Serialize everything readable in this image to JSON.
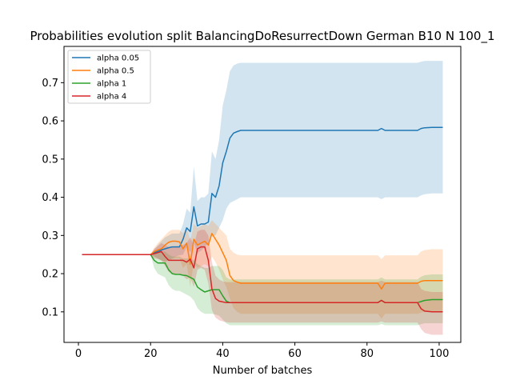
{
  "chart_data": {
    "type": "line",
    "title": "Probabilities evolution split BalancingDoResurrectDown German B10 N 100_1",
    "xlabel": "Number of batches",
    "ylabel": "",
    "xlim": [
      -4,
      106
    ],
    "ylim": [
      0.02,
      0.795
    ],
    "xticks": [
      0,
      20,
      40,
      60,
      80,
      100
    ],
    "yticks": [
      0.1,
      0.2,
      0.3,
      0.4,
      0.5,
      0.6,
      0.7
    ],
    "grid": false,
    "legend_position": "top-left",
    "band_opacity": 0.2,
    "series": [
      {
        "name": "alpha 0.05",
        "color": "#1f77b4",
        "x": [
          1,
          20,
          21,
          22,
          23,
          24,
          25,
          26,
          27,
          28,
          29,
          30,
          31,
          32,
          33,
          34,
          35,
          36,
          37,
          38,
          39,
          40,
          41,
          42,
          43,
          44,
          45,
          46,
          50,
          60,
          70,
          80,
          83,
          84,
          85,
          90,
          94,
          95,
          96,
          98,
          101
        ],
        "y": [
          0.25,
          0.25,
          0.255,
          0.258,
          0.262,
          0.265,
          0.268,
          0.27,
          0.27,
          0.27,
          0.29,
          0.32,
          0.31,
          0.375,
          0.325,
          0.33,
          0.33,
          0.335,
          0.41,
          0.4,
          0.43,
          0.49,
          0.52,
          0.555,
          0.568,
          0.572,
          0.575,
          0.575,
          0.575,
          0.575,
          0.575,
          0.575,
          0.575,
          0.58,
          0.575,
          0.575,
          0.575,
          0.58,
          0.582,
          0.583,
          0.583
        ],
        "lower": [
          0.25,
          0.25,
          0.245,
          0.24,
          0.235,
          0.232,
          0.235,
          0.24,
          0.245,
          0.248,
          0.25,
          0.27,
          0.255,
          0.28,
          0.255,
          0.26,
          0.27,
          0.28,
          0.3,
          0.3,
          0.32,
          0.34,
          0.37,
          0.385,
          0.39,
          0.395,
          0.4,
          0.4,
          0.4,
          0.4,
          0.4,
          0.4,
          0.4,
          0.395,
          0.4,
          0.4,
          0.4,
          0.405,
          0.408,
          0.41,
          0.41
        ],
        "upper": [
          0.25,
          0.25,
          0.262,
          0.275,
          0.285,
          0.295,
          0.3,
          0.305,
          0.305,
          0.305,
          0.33,
          0.37,
          0.36,
          0.48,
          0.39,
          0.4,
          0.4,
          0.41,
          0.52,
          0.5,
          0.55,
          0.64,
          0.68,
          0.73,
          0.745,
          0.75,
          0.752,
          0.752,
          0.752,
          0.752,
          0.752,
          0.752,
          0.752,
          0.752,
          0.752,
          0.752,
          0.752,
          0.755,
          0.757,
          0.757,
          0.757
        ]
      },
      {
        "name": "alpha 0.5",
        "color": "#ff7f0e",
        "x": [
          1,
          20,
          21,
          22,
          23,
          24,
          25,
          26,
          27,
          28,
          29,
          30,
          31,
          32,
          33,
          34,
          35,
          36,
          37,
          38,
          39,
          40,
          41,
          42,
          43,
          44,
          45,
          46,
          50,
          60,
          70,
          80,
          83,
          84,
          85,
          90,
          94,
          95,
          96,
          98,
          101
        ],
        "y": [
          0.25,
          0.25,
          0.258,
          0.262,
          0.265,
          0.275,
          0.282,
          0.285,
          0.285,
          0.283,
          0.265,
          0.28,
          0.225,
          0.29,
          0.275,
          0.28,
          0.285,
          0.275,
          0.305,
          0.29,
          0.275,
          0.255,
          0.235,
          0.195,
          0.182,
          0.178,
          0.175,
          0.175,
          0.175,
          0.175,
          0.175,
          0.175,
          0.175,
          0.16,
          0.175,
          0.175,
          0.175,
          0.18,
          0.182,
          0.182,
          0.182
        ],
        "lower": [
          0.25,
          0.25,
          0.245,
          0.24,
          0.235,
          0.23,
          0.235,
          0.238,
          0.24,
          0.24,
          0.215,
          0.225,
          0.165,
          0.23,
          0.215,
          0.22,
          0.225,
          0.22,
          0.245,
          0.23,
          0.21,
          0.185,
          0.165,
          0.135,
          0.11,
          0.1,
          0.095,
          0.095,
          0.095,
          0.095,
          0.095,
          0.095,
          0.095,
          0.082,
          0.095,
          0.095,
          0.095,
          0.098,
          0.1,
          0.1,
          0.1
        ],
        "upper": [
          0.25,
          0.25,
          0.268,
          0.28,
          0.29,
          0.3,
          0.31,
          0.315,
          0.315,
          0.315,
          0.305,
          0.32,
          0.285,
          0.33,
          0.32,
          0.325,
          0.33,
          0.325,
          0.34,
          0.33,
          0.32,
          0.31,
          0.3,
          0.265,
          0.255,
          0.25,
          0.248,
          0.248,
          0.248,
          0.248,
          0.248,
          0.248,
          0.248,
          0.238,
          0.248,
          0.248,
          0.248,
          0.258,
          0.262,
          0.264,
          0.264
        ]
      },
      {
        "name": "alpha 1",
        "color": "#2ca02c",
        "x": [
          1,
          20,
          21,
          22,
          23,
          24,
          25,
          26,
          27,
          28,
          29,
          30,
          31,
          32,
          33,
          34,
          35,
          36,
          37,
          38,
          39,
          40,
          41,
          42,
          43,
          44,
          45,
          46,
          50,
          60,
          70,
          80,
          83,
          84,
          85,
          90,
          94,
          95,
          96,
          98,
          101
        ],
        "y": [
          0.25,
          0.25,
          0.235,
          0.228,
          0.228,
          0.228,
          0.21,
          0.2,
          0.198,
          0.198,
          0.196,
          0.195,
          0.19,
          0.185,
          0.165,
          0.158,
          0.152,
          0.155,
          0.158,
          0.158,
          0.158,
          0.142,
          0.128,
          0.124,
          0.124,
          0.124,
          0.124,
          0.124,
          0.124,
          0.124,
          0.124,
          0.124,
          0.124,
          0.13,
          0.124,
          0.124,
          0.124,
          0.127,
          0.13,
          0.132,
          0.132
        ],
        "lower": [
          0.25,
          0.25,
          0.215,
          0.2,
          0.195,
          0.19,
          0.17,
          0.16,
          0.155,
          0.155,
          0.15,
          0.145,
          0.14,
          0.13,
          0.11,
          0.1,
          0.095,
          0.095,
          0.095,
          0.093,
          0.09,
          0.08,
          0.07,
          0.065,
          0.065,
          0.065,
          0.065,
          0.065,
          0.065,
          0.065,
          0.065,
          0.065,
          0.065,
          0.068,
          0.065,
          0.065,
          0.065,
          0.068,
          0.07,
          0.07,
          0.07
        ],
        "upper": [
          0.25,
          0.25,
          0.255,
          0.258,
          0.258,
          0.258,
          0.25,
          0.245,
          0.245,
          0.245,
          0.24,
          0.24,
          0.24,
          0.235,
          0.225,
          0.22,
          0.215,
          0.215,
          0.22,
          0.22,
          0.22,
          0.21,
          0.19,
          0.185,
          0.185,
          0.185,
          0.185,
          0.185,
          0.185,
          0.185,
          0.185,
          0.185,
          0.185,
          0.19,
          0.185,
          0.185,
          0.185,
          0.192,
          0.196,
          0.198,
          0.198
        ]
      },
      {
        "name": "alpha 4",
        "color": "#d62728",
        "x": [
          1,
          20,
          21,
          22,
          23,
          24,
          25,
          26,
          27,
          28,
          29,
          30,
          31,
          32,
          33,
          34,
          35,
          36,
          37,
          38,
          39,
          40,
          41,
          42,
          43,
          44,
          45,
          46,
          50,
          60,
          70,
          80,
          83,
          84,
          85,
          90,
          94,
          95,
          96,
          98,
          101
        ],
        "y": [
          0.25,
          0.25,
          0.252,
          0.255,
          0.258,
          0.245,
          0.235,
          0.235,
          0.235,
          0.235,
          0.235,
          0.23,
          0.238,
          0.215,
          0.265,
          0.27,
          0.27,
          0.235,
          0.16,
          0.135,
          0.128,
          0.126,
          0.124,
          0.124,
          0.124,
          0.124,
          0.124,
          0.124,
          0.124,
          0.124,
          0.124,
          0.124,
          0.124,
          0.13,
          0.124,
          0.124,
          0.124,
          0.108,
          0.102,
          0.1,
          0.1
        ],
        "lower": [
          0.25,
          0.25,
          0.24,
          0.238,
          0.235,
          0.22,
          0.205,
          0.2,
          0.2,
          0.2,
          0.195,
          0.185,
          0.19,
          0.165,
          0.21,
          0.215,
          0.21,
          0.175,
          0.105,
          0.085,
          0.078,
          0.075,
          0.073,
          0.072,
          0.072,
          0.072,
          0.072,
          0.072,
          0.072,
          0.072,
          0.072,
          0.072,
          0.072,
          0.075,
          0.072,
          0.072,
          0.072,
          0.055,
          0.045,
          0.04,
          0.04
        ],
        "upper": [
          0.25,
          0.25,
          0.265,
          0.272,
          0.28,
          0.275,
          0.27,
          0.27,
          0.272,
          0.272,
          0.275,
          0.28,
          0.295,
          0.275,
          0.31,
          0.315,
          0.315,
          0.3,
          0.23,
          0.195,
          0.185,
          0.18,
          0.178,
          0.178,
          0.178,
          0.178,
          0.178,
          0.178,
          0.178,
          0.178,
          0.178,
          0.178,
          0.178,
          0.182,
          0.178,
          0.178,
          0.178,
          0.16,
          0.155,
          0.152,
          0.152
        ]
      }
    ]
  }
}
